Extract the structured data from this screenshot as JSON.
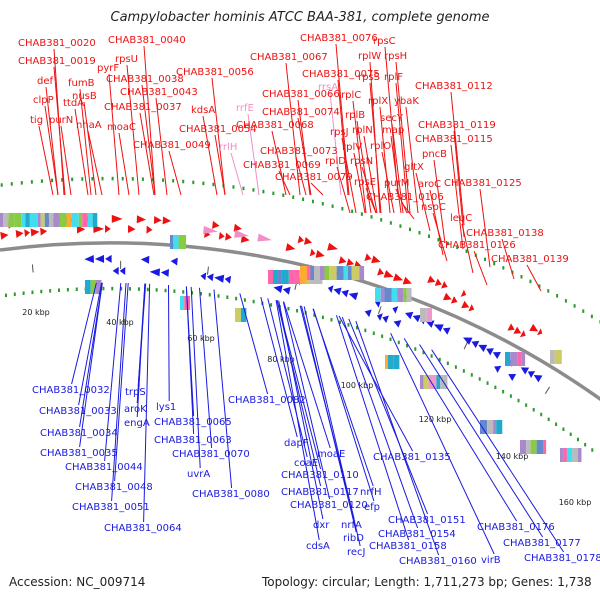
{
  "title": "Campylobacter hominis ATCC BAA-381, complete genome",
  "footer": {
    "accession": "Accession: NC_009714",
    "summary": "Topology: circular; Length: 1,711,273 bp; Genes: 1,738"
  },
  "colors": {
    "forward_strand": "#ee1111",
    "reverse_strand": "#1a1ae0",
    "rna": "#f090c8",
    "backbone": "#8c8c8c",
    "tick_label": "#222222"
  },
  "scale_labels": [
    "20 kbp",
    "40 kbp",
    "60 kbp",
    "80 kbp",
    "100 kbp",
    "120 kbp",
    "140 kbp",
    "160 kbp"
  ],
  "forward_labels": [
    "CHAB381_0020",
    "CHAB381_0019",
    "def",
    "clpP",
    "tig",
    "purN",
    "fumB",
    "nusB",
    "ttdA",
    "nhaA",
    "pyrF",
    "CHAB381_0040",
    "rpsU",
    "CHAB381_0038",
    "CHAB381_0037",
    "moaC",
    "CHAB381_0043",
    "CHAB381_0049",
    "CHAB381_0056",
    "kdsA",
    "CHAB381_0054",
    "rrfE",
    "rrlH",
    "CHAB381_0076",
    "CHAB381_0067",
    "CHAB381_0075",
    "rrsA",
    "CHAB381_0066",
    "CHAB381_0074",
    "CHAB381_0068",
    "CHAB381_0073",
    "CHAB381_0069",
    "CHAB381_0079",
    "rpsC",
    "rpsH",
    "rplW",
    "rpsS",
    "rplF",
    "rplC",
    "rplB",
    "rplX",
    "secY",
    "ybaK",
    "rplN",
    "rpsJ",
    "map",
    "rplV",
    "rplO",
    "rplD",
    "rpsN",
    "rpsE",
    "purM",
    "CHAB381_0106",
    "CHAB381_0112",
    "gltX",
    "CHAB381_0119",
    "pncB",
    "CHAB381_0115",
    "aroC",
    "nspC",
    "CHAB381_0125",
    "leuC",
    "CHAB381_0138",
    "CHAB381_0126",
    "CHAB381_0139"
  ],
  "reverse_labels": [
    "CHAB381_0032",
    "CHAB381_0033",
    "CHAB381_0034",
    "CHAB381_0035",
    "trpS",
    "aroK",
    "engA",
    "lys1",
    "CHAB381_0044",
    "CHAB381_0048",
    "CHAB381_0051",
    "CHAB381_0064",
    "CHAB381_0065",
    "CHAB381_0063",
    "CHAB381_0070",
    "uvrA",
    "CHAB381_0080",
    "CHAB381_0082",
    "dapF",
    "coaE",
    "moaE",
    "CHAB381_0110",
    "CHAB381_0117",
    "CHAB381_0120",
    "dxr",
    "cdsA",
    "nrfA",
    "ribD",
    "recJ",
    "nrfH",
    "efp",
    "CHAB381_0135",
    "CHAB381_0151",
    "CHAB381_0154",
    "CHAB381_0158",
    "CHAB381_0160",
    "CHAB381_0176",
    "CHAB381_0177",
    "virB",
    "CHAB381_0178"
  ]
}
